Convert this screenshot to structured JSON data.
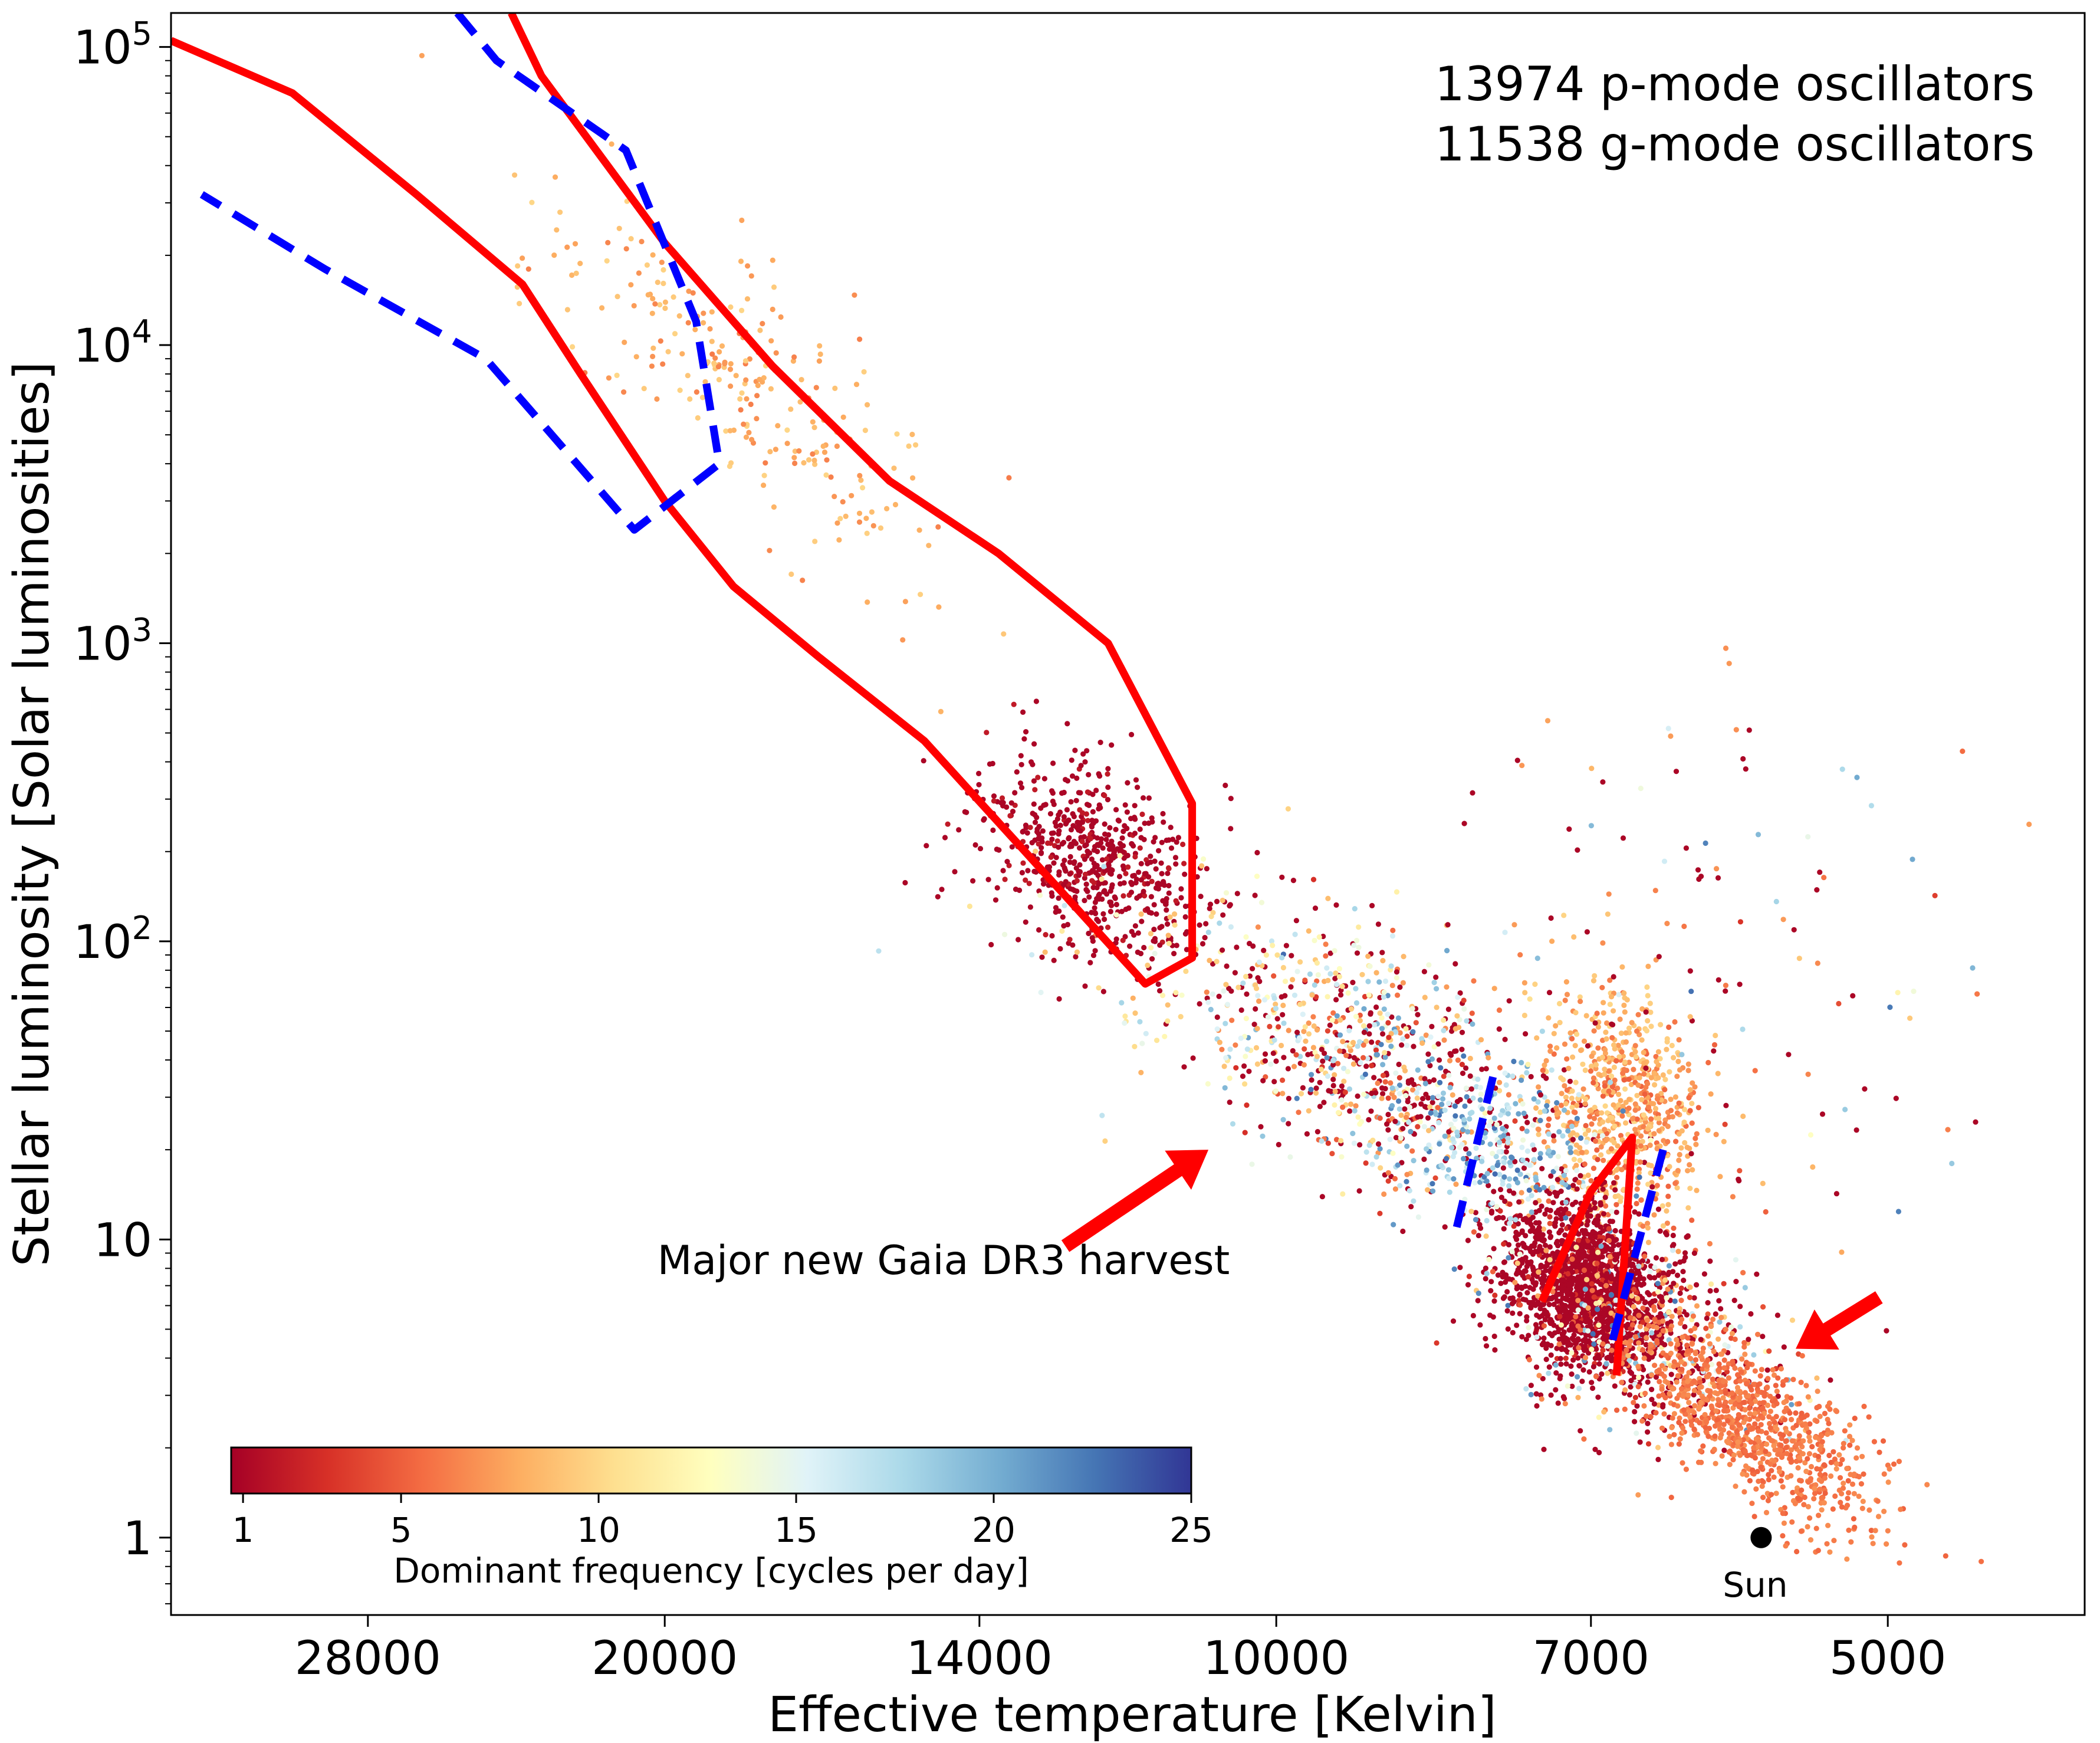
{
  "chart_data": {
    "type": "scatter",
    "title": "",
    "xlabel": "Effective temperature [Kelvin]",
    "ylabel": "Stellar luminosity [Solar luminosities]",
    "x_scale": "log",
    "x_reversed": true,
    "y_scale": "log",
    "xlim": [
      35000,
      4000
    ],
    "ylim": [
      0.55,
      130000
    ],
    "x_ticks": [
      {
        "value": 28000,
        "label": "28000"
      },
      {
        "value": 20000,
        "label": "20000"
      },
      {
        "value": 14000,
        "label": "14000"
      },
      {
        "value": 10000,
        "label": "10000"
      },
      {
        "value": 7000,
        "label": "7000"
      },
      {
        "value": 5000,
        "label": "5000"
      }
    ],
    "y_ticks": [
      {
        "value": 1,
        "base": "1",
        "exp": ""
      },
      {
        "value": 10,
        "base": "10",
        "exp": ""
      },
      {
        "value": 100,
        "base": "10",
        "exp": "2"
      },
      {
        "value": 1000,
        "base": "10",
        "exp": "3"
      },
      {
        "value": 10000,
        "base": "10",
        "exp": "4"
      },
      {
        "value": 100000,
        "base": "10",
        "exp": "5"
      }
    ],
    "grid": false,
    "annotations": {
      "count_lines": [
        "13974 p-mode oscillators",
        "11538 g-mode oscillators"
      ],
      "harvest": "Major new Gaia DR3 harvest",
      "sun_label": "Sun"
    },
    "sun": {
      "teff": 5772,
      "lum": 1.0
    },
    "arrows": [
      {
        "from": {
          "teff": 12700,
          "lum": 9.5
        },
        "to": {
          "teff": 10800,
          "lum": 20
        }
      },
      {
        "from": {
          "teff": 5050,
          "lum": 6.4
        },
        "to": {
          "teff": 5550,
          "lum": 4.3
        }
      }
    ],
    "colorbar": {
      "label": "Dominant frequency [cycles per day]",
      "min": 0.7,
      "max": 25,
      "ticks": [
        1,
        5,
        10,
        15,
        20,
        25
      ],
      "colormap": "RdYlBu",
      "colormap_stops": [
        "#a50026",
        "#d73027",
        "#f46d43",
        "#fdae61",
        "#fee090",
        "#ffffbf",
        "#e0f3f8",
        "#abd9e9",
        "#74add1",
        "#4575b4",
        "#313695"
      ]
    },
    "instability_regions": [
      {
        "style": "solid",
        "color": "#ff0000",
        "points": [
          [
            35000,
            105000
          ],
          [
            30500,
            70000
          ],
          [
            26500,
            32000
          ],
          [
            23500,
            16000
          ],
          [
            22000,
            8000
          ],
          [
            20000,
            3000
          ],
          [
            18500,
            1550
          ],
          [
            16800,
            900
          ],
          [
            14900,
            470
          ],
          [
            11600,
            72
          ],
          [
            11000,
            88
          ],
          [
            11000,
            290
          ],
          [
            12100,
            1000
          ],
          [
            13700,
            2000
          ],
          [
            15500,
            3500
          ],
          [
            17700,
            8500
          ],
          [
            20000,
            22000
          ],
          [
            23000,
            80000
          ],
          [
            23800,
            130000
          ]
        ]
      },
      {
        "style": "dashed",
        "color": "#0000ff",
        "points": [
          [
            25300,
            130000
          ],
          [
            24200,
            90000
          ],
          [
            20900,
            45000
          ],
          [
            19300,
            12000
          ],
          [
            18800,
            4000
          ],
          [
            20700,
            2400
          ],
          [
            24500,
            9000
          ],
          [
            29400,
            18000
          ],
          [
            33800,
            32000
          ]
        ]
      },
      {
        "style": "solid",
        "color": "#ff0000",
        "points": [
          [
            7400,
            6.2
          ],
          [
            7000,
            14.5
          ],
          [
            6680,
            22
          ],
          [
            6800,
            3.5
          ]
        ]
      },
      {
        "style": "dashed",
        "color": "#0000ff",
        "points": [
          [
            8150,
            11
          ],
          [
            7800,
            38
          ]
        ]
      },
      {
        "style": "dashed",
        "color": "#0000ff",
        "points": [
          [
            6830,
            4.6
          ],
          [
            6450,
            20
          ]
        ]
      }
    ],
    "series": [
      {
        "name": "",
        "points_sample": [
          {
            "teff": 7000,
            "lum": 7,
            "freq": 1
          },
          {
            "teff": 6700,
            "lum": 25,
            "freq": 9
          },
          {
            "teff": 5800,
            "lum": 2.5,
            "freq": 6
          },
          {
            "teff": 12500,
            "lum": 200,
            "freq": 1
          },
          {
            "teff": 18000,
            "lum": 9000,
            "freq": 7
          },
          {
            "teff": 8700,
            "lum": 40,
            "freq": 1
          },
          {
            "teff": 7800,
            "lum": 20,
            "freq": 17
          }
        ]
      }
    ]
  }
}
